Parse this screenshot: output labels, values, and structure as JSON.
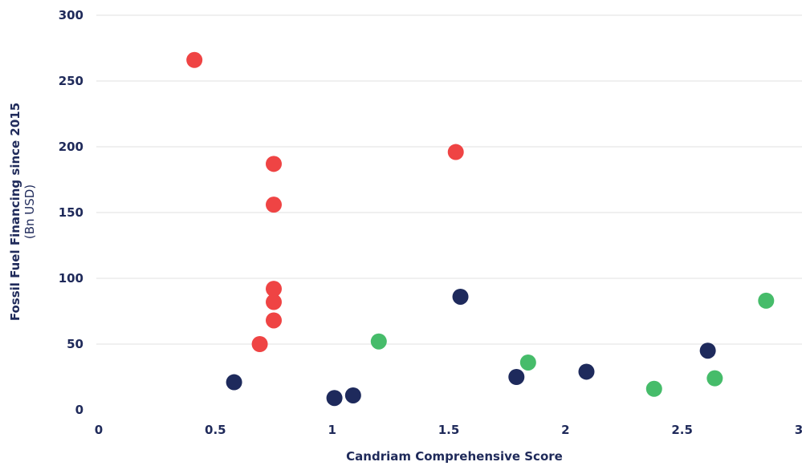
{
  "chart_data": {
    "type": "scatter",
    "title": "",
    "xlabel": "Candriam Comprehensive Score",
    "ylabel": "Fossil Fuel Financing since 2015",
    "ylabel_unit": "(Bn USD)",
    "xlim": [
      0,
      3
    ],
    "ylim": [
      0,
      300
    ],
    "x_ticks": [
      0,
      0.5,
      1,
      1.5,
      2,
      2.5,
      3
    ],
    "x_tick_labels": [
      "0",
      "0.5",
      "1",
      "1.5",
      "2",
      "2.5",
      "3"
    ],
    "y_ticks": [
      0,
      50,
      100,
      150,
      200,
      250,
      300
    ],
    "y_tick_labels": [
      "0",
      "50",
      "100",
      "150",
      "200",
      "250",
      "300"
    ],
    "grid": "horizontal",
    "series": [
      {
        "color": "#ef4444",
        "points": [
          {
            "x": 0.41,
            "y": 266
          },
          {
            "x": 0.75,
            "y": 187
          },
          {
            "x": 0.75,
            "y": 156
          },
          {
            "x": 0.75,
            "y": 92
          },
          {
            "x": 0.75,
            "y": 82
          },
          {
            "x": 0.75,
            "y": 68
          },
          {
            "x": 0.69,
            "y": 50
          },
          {
            "x": 1.53,
            "y": 196
          }
        ]
      },
      {
        "color": "#1e2a5c",
        "points": [
          {
            "x": 0.58,
            "y": 21
          },
          {
            "x": 1.01,
            "y": 9
          },
          {
            "x": 1.09,
            "y": 11
          },
          {
            "x": 1.55,
            "y": 86
          },
          {
            "x": 1.79,
            "y": 25
          },
          {
            "x": 2.09,
            "y": 29
          },
          {
            "x": 2.61,
            "y": 45
          }
        ]
      },
      {
        "color": "#46bc6a",
        "points": [
          {
            "x": 1.2,
            "y": 52
          },
          {
            "x": 1.84,
            "y": 36
          },
          {
            "x": 2.38,
            "y": 16
          },
          {
            "x": 2.64,
            "y": 24
          },
          {
            "x": 2.86,
            "y": 83
          }
        ]
      }
    ]
  }
}
